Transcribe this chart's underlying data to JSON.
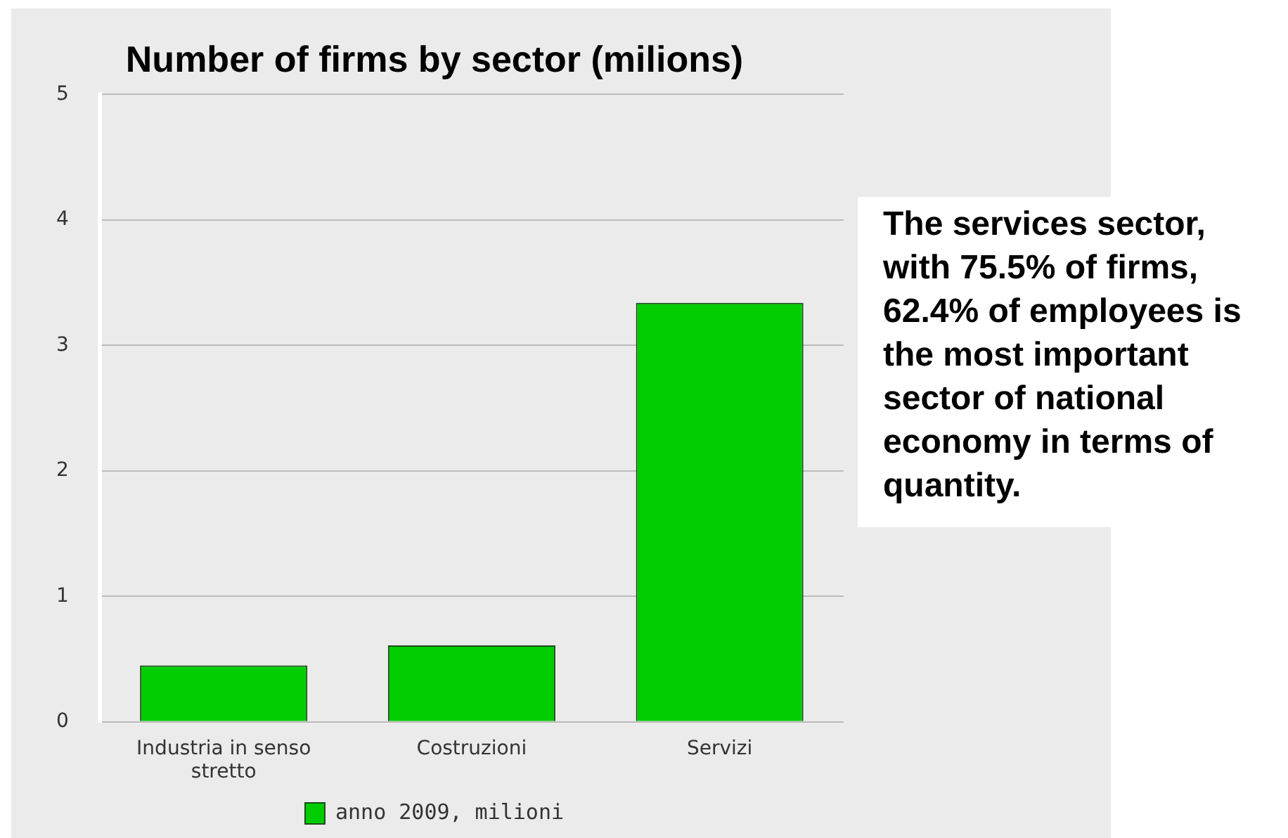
{
  "chart_data": {
    "type": "bar",
    "title": "Number of firms by sector (milions)",
    "categories": [
      "Industria in senso stretto",
      "Costruzioni",
      "Servizi"
    ],
    "series": [
      {
        "name": "anno 2009, milioni",
        "color": "#00cc00",
        "values": [
          0.45,
          0.61,
          3.34
        ]
      }
    ],
    "ylim": [
      0,
      5
    ],
    "yticks": [
      0,
      1,
      2,
      3,
      4,
      5
    ],
    "grid": "y",
    "legend": "bottom",
    "annotations": [
      "The services sector, with 75.5% of firms, 62.4% of employees is the most important sector of national economy in terms of quantity."
    ]
  }
}
